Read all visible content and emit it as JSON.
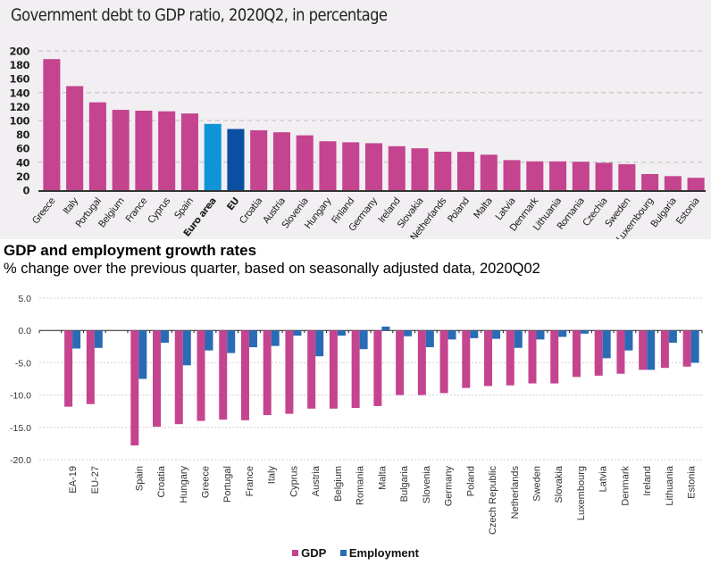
{
  "colors": {
    "top_background": "#f2eff2",
    "country_bar": "#c4448f",
    "euro_area_bar": "#0f94d8",
    "eu_bar": "#0a4fa1",
    "gdp": "#c4448f",
    "employment": "#2a6bb5"
  },
  "chart_data": [
    {
      "type": "bar",
      "title": "Government debt to GDP ratio, 2020Q2, in percentage",
      "xlabel": "",
      "ylabel": "",
      "ylim": [
        0,
        200
      ],
      "yticks": [
        0,
        20,
        40,
        60,
        80,
        100,
        120,
        140,
        160,
        180,
        200
      ],
      "gridlines": [
        40,
        100,
        140,
        200
      ],
      "grid": true,
      "categories": [
        "Greece",
        "Italy",
        "Portugal",
        "Belgium",
        "France",
        "Cyprus",
        "Spain",
        "Euro area",
        "EU",
        "Croatia",
        "Austria",
        "Slovenia",
        "Hungary",
        "Finland",
        "Germany",
        "Ireland",
        "Slovakia",
        "Netherlands",
        "Poland",
        "Malta",
        "Latvia",
        "Denmark",
        "Lithuania",
        "Romania",
        "Czechia",
        "Sweden",
        "Luxembourg",
        "Bulgaria",
        "Estonia"
      ],
      "highlight": {
        "Euro area": "euro_area_bar",
        "EU": "eu_bar"
      },
      "values": [
        188.2,
        149.4,
        126.1,
        115.3,
        114.1,
        113.2,
        110.1,
        95.1,
        87.8,
        86.0,
        83.1,
        78.7,
        70.2,
        68.7,
        67.4,
        63.1,
        60.1,
        55.2,
        55.0,
        50.9,
        43.1,
        41.3,
        41.3,
        40.8,
        39.3,
        37.3,
        23.1,
        20.1,
        17.7
      ]
    },
    {
      "type": "bar",
      "title": "GDP and employment growth rates",
      "subtitle": "% change over the previous quarter, based on seasonally adjusted data, 2020Q02",
      "xlabel": "",
      "ylabel": "",
      "ylim": [
        -20,
        5
      ],
      "yticks": [
        "5.0",
        "0.0",
        "-5.0",
        "-10.0",
        "-15.0",
        "-20.0"
      ],
      "grid": true,
      "legend": "bottom-center",
      "categories": [
        "",
        "EA-19",
        "EU-27",
        "",
        "Spain",
        "Croatia",
        "Hungary",
        "Greece",
        "Portugal",
        "France",
        "Italy",
        "Cyprus",
        "Austria",
        "Belgium",
        "Romania",
        "Malta",
        "Bulgaria",
        "Slovenia",
        "Germany",
        "Poland",
        "Czech Republic",
        "Netherlands",
        "Sweden",
        "Slovakia",
        "Luxembourg",
        "Latvia",
        "Denmark",
        "Ireland",
        "Lithuania",
        "Estonia"
      ],
      "series": [
        {
          "name": "GDP",
          "values": [
            null,
            -11.8,
            -11.4,
            null,
            -17.8,
            -14.9,
            -14.5,
            -14.0,
            -13.8,
            -13.9,
            -13.1,
            -12.9,
            -12.1,
            -12.1,
            -12.0,
            -11.7,
            -10.0,
            -10.0,
            -9.7,
            -8.9,
            -8.6,
            -8.5,
            -8.2,
            -8.2,
            -7.2,
            -7.0,
            -6.7,
            -6.1,
            -5.8,
            -5.6
          ]
        },
        {
          "name": "Employment",
          "values": [
            null,
            -2.8,
            -2.7,
            null,
            -7.5,
            -1.9,
            -5.4,
            -3.1,
            -3.5,
            -2.6,
            -2.4,
            -0.8,
            -4.0,
            -0.8,
            -2.9,
            0.6,
            -0.9,
            -2.6,
            -1.4,
            -1.2,
            -1.3,
            -2.7,
            -1.4,
            -1.0,
            -0.5,
            -4.3,
            -3.1,
            -6.1,
            -1.9,
            -5.0
          ]
        }
      ]
    }
  ]
}
